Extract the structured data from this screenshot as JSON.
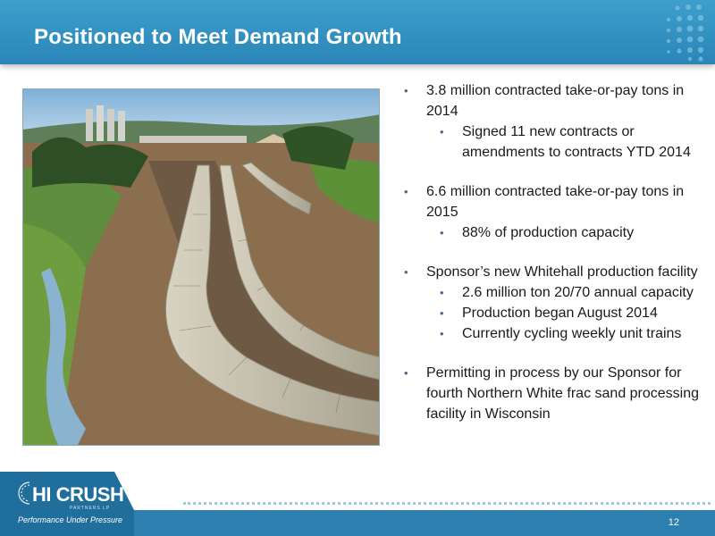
{
  "header": {
    "title": "Positioned to Meet Demand Growth"
  },
  "bullets": [
    {
      "text": "3.8 million contracted take-or-pay tons in 2014",
      "sub": [
        "Signed 11 new contracts or amendments to contracts YTD 2014"
      ]
    },
    {
      "text": "6.6 million contracted take-or-pay tons in 2015",
      "sub": [
        "88% of production capacity"
      ]
    },
    {
      "text": "Sponsor’s new Whitehall production facility",
      "sub": [
        "2.6 million ton 20/70 annual capacity",
        "Production began August 2014",
        "Currently cycling weekly unit trains"
      ]
    },
    {
      "text": "Permitting in process by our Sponsor for fourth Northern White frac sand processing facility in Wisconsin",
      "sub": []
    }
  ],
  "logo": {
    "name": "HI CRUSH",
    "subtitle": "PARTNERS LP",
    "tagline": "Performance Under Pressure"
  },
  "footer": {
    "page_number": "12"
  },
  "colors": {
    "header_blue": "#3d9fcc",
    "footer_blue": "#2c7fae",
    "logo_tab": "#1f6e9c"
  }
}
